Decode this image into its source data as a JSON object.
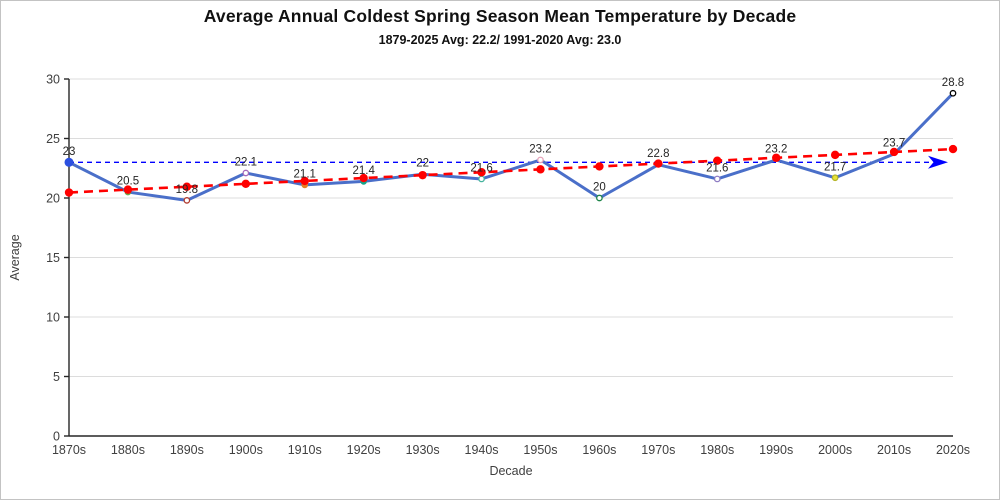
{
  "header": {
    "title": "Average Annual Coldest Spring Season Mean Temperature by Decade",
    "subtitle": "1879-2025 Avg: 22.2/ 1991-2020 Avg: 23.0"
  },
  "chart_data": {
    "type": "line",
    "title": "Average Annual Coldest Spring Season Mean Temperature by Decade",
    "subtitle": "1879-2025 Avg: 22.2/ 1991-2020 Avg: 23.0",
    "xlabel": "Decade",
    "ylabel": "Average",
    "ylim": [
      0,
      30
    ],
    "yticks": [
      0,
      5,
      10,
      15,
      20,
      25,
      30
    ],
    "grid": true,
    "legend": "none",
    "categories": [
      "1870s",
      "1880s",
      "1890s",
      "1900s",
      "1910s",
      "1920s",
      "1930s",
      "1940s",
      "1950s",
      "1960s",
      "1970s",
      "1980s",
      "1990s",
      "2000s",
      "2010s",
      "2020s"
    ],
    "series": [
      {
        "name": "decade-mean-temperature",
        "kind": "line-with-markers",
        "color": "#4a6fc9",
        "values": [
          23,
          20.5,
          19.8,
          22.1,
          21.1,
          21.4,
          22,
          21.6,
          23.2,
          20,
          22.8,
          21.6,
          23.2,
          21.7,
          23.7,
          28.8
        ],
        "point_labels": [
          "23",
          "20.5",
          "19.8",
          "22.1",
          "21.1",
          "21.4",
          "22",
          "21.6",
          "23.2",
          "20",
          "22.8",
          "21.6",
          "23.2",
          "21.7",
          "23.7",
          "28.8"
        ]
      },
      {
        "name": "linear-trend",
        "kind": "dashed-trendline-with-markers",
        "color": "#ff0000",
        "start_value": 20.46,
        "end_value": 24.11
      },
      {
        "name": "reference-average-1991-2020",
        "kind": "dashed-horizontal-arrow",
        "color": "#0000ff",
        "value": 23.0
      }
    ],
    "point_markers": [
      {
        "type": "none"
      },
      {
        "type": "filled",
        "color": "#6aa84f"
      },
      {
        "type": "open",
        "color": "#b03a2e"
      },
      {
        "type": "open",
        "color": "#a569bd"
      },
      {
        "type": "filled",
        "color": "#e67e22"
      },
      {
        "type": "filled",
        "color": "#17a589"
      },
      {
        "type": "none"
      },
      {
        "type": "open",
        "color": "#45b39d"
      },
      {
        "type": "open",
        "color": "#e6a3b8"
      },
      {
        "type": "open",
        "color": "#1e8449"
      },
      {
        "type": "none"
      },
      {
        "type": "open",
        "color": "#8e7cc3"
      },
      {
        "type": "none"
      },
      {
        "type": "filled",
        "color": "#e8e337",
        "stroke": "#b5b52a"
      },
      {
        "type": "none"
      },
      {
        "type": "open",
        "color": "#000000"
      }
    ],
    "colors": {
      "grid": "#dcdcdc",
      "axis": "#262626",
      "tick_label": "#404040",
      "data_label": "#262626",
      "reference_start_marker": "#2b50e0"
    }
  }
}
